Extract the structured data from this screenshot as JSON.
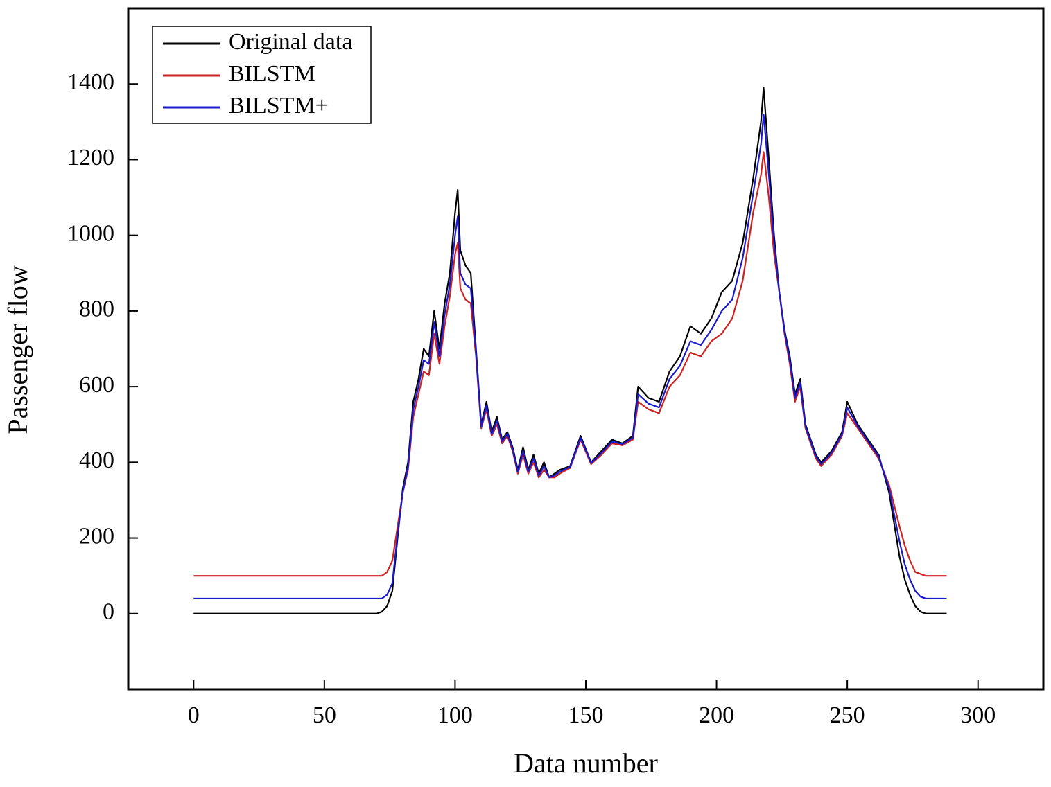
{
  "chart_data": {
    "type": "line",
    "xlabel": "Data number",
    "ylabel": "Passenger flow",
    "xlim": [
      -25,
      325
    ],
    "ylim": [
      -200,
      1600
    ],
    "xticks": [
      0,
      50,
      100,
      150,
      200,
      250,
      300
    ],
    "yticks": [
      0,
      200,
      400,
      600,
      800,
      1000,
      1200,
      1400
    ],
    "legend": "upper left",
    "x": [
      0,
      70,
      72,
      74,
      76,
      78,
      80,
      82,
      84,
      86,
      88,
      90,
      92,
      94,
      96,
      98,
      100,
      101,
      102,
      104,
      106,
      108,
      110,
      112,
      114,
      116,
      118,
      120,
      122,
      124,
      126,
      128,
      130,
      132,
      134,
      136,
      138,
      140,
      144,
      148,
      152,
      156,
      160,
      164,
      168,
      170,
      174,
      178,
      182,
      186,
      190,
      194,
      198,
      202,
      206,
      210,
      214,
      217,
      218,
      220,
      222,
      224,
      226,
      228,
      230,
      232,
      234,
      236,
      238,
      240,
      244,
      248,
      250,
      254,
      258,
      262,
      266,
      270,
      272,
      274,
      276,
      278,
      280,
      284,
      288
    ],
    "series": [
      {
        "name": "Original data",
        "color": "#000000",
        "values": [
          0,
          0,
          5,
          20,
          60,
          200,
          330,
          400,
          560,
          620,
          700,
          680,
          800,
          700,
          820,
          900,
          1060,
          1120,
          960,
          920,
          900,
          700,
          500,
          560,
          480,
          520,
          460,
          480,
          440,
          380,
          440,
          380,
          420,
          370,
          400,
          360,
          370,
          380,
          390,
          470,
          400,
          430,
          460,
          450,
          470,
          600,
          570,
          560,
          640,
          680,
          760,
          740,
          780,
          850,
          880,
          980,
          1150,
          1300,
          1390,
          1200,
          1000,
          850,
          750,
          680,
          580,
          620,
          500,
          460,
          420,
          400,
          430,
          480,
          560,
          500,
          460,
          420,
          320,
          150,
          90,
          50,
          20,
          5,
          0,
          0,
          0
        ]
      },
      {
        "name": "BILSTM",
        "color": "#cc2222",
        "values": [
          100,
          100,
          100,
          110,
          140,
          230,
          320,
          380,
          520,
          580,
          640,
          630,
          740,
          660,
          760,
          840,
          950,
          980,
          860,
          830,
          820,
          680,
          490,
          540,
          470,
          500,
          450,
          470,
          430,
          370,
          420,
          370,
          400,
          360,
          380,
          360,
          360,
          370,
          385,
          460,
          395,
          420,
          450,
          445,
          460,
          560,
          540,
          530,
          600,
          630,
          690,
          680,
          720,
          740,
          780,
          880,
          1060,
          1160,
          1220,
          1100,
          950,
          850,
          740,
          660,
          560,
          600,
          490,
          450,
          410,
          390,
          420,
          470,
          530,
          490,
          450,
          410,
          340,
          230,
          180,
          140,
          110,
          105,
          100,
          100,
          100
        ]
      },
      {
        "name": "BILSTM+",
        "color": "#1a1acc",
        "values": [
          40,
          40,
          40,
          50,
          80,
          210,
          320,
          390,
          540,
          600,
          670,
          660,
          770,
          680,
          790,
          870,
          1000,
          1050,
          900,
          870,
          860,
          690,
          495,
          550,
          475,
          510,
          455,
          475,
          435,
          375,
          430,
          375,
          410,
          365,
          390,
          360,
          365,
          375,
          388,
          465,
          398,
          425,
          455,
          448,
          465,
          580,
          555,
          545,
          620,
          655,
          720,
          710,
          750,
          800,
          830,
          940,
          1110,
          1240,
          1320,
          1160,
          980,
          850,
          745,
          670,
          570,
          610,
          495,
          455,
          415,
          395,
          425,
          475,
          545,
          495,
          455,
          415,
          330,
          190,
          130,
          90,
          60,
          45,
          40,
          40,
          40
        ]
      }
    ]
  }
}
